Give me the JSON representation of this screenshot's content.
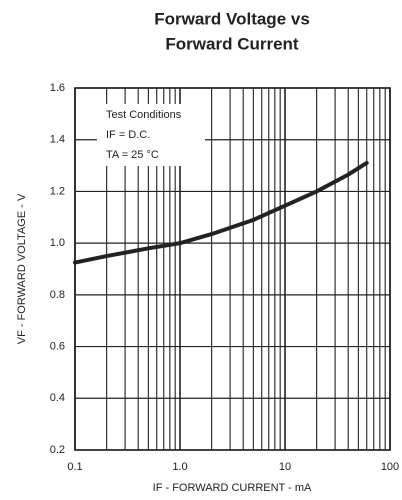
{
  "chart_data": {
    "type": "line",
    "title": [
      "Forward Voltage vs",
      "Forward Current"
    ],
    "x_label": "IF - FORWARD CURRENT - mA",
    "y_label": "VF - FORWARD VOLTAGE - V",
    "annotations": [
      "Test Conditions",
      "IF = D.C.",
      "TA = 25 °C"
    ],
    "x": [
      0.1,
      0.2,
      0.5,
      1,
      2,
      5,
      10,
      20,
      40,
      60
    ],
    "series": [
      {
        "name": "VF",
        "color": "#222222",
        "values": [
          0.925,
          0.95,
          0.98,
          1.0,
          1.035,
          1.09,
          1.145,
          1.2,
          1.265,
          1.31
        ]
      }
    ],
    "xlim": [
      0.1,
      100
    ],
    "xscale": "log",
    "xticks": [
      0.1,
      {
        "value": 1,
        "label": "1.0"
      },
      10,
      100
    ],
    "ylim": [
      0.2,
      1.6
    ],
    "yticks": [
      0.2,
      0.4,
      0.6,
      0.8,
      {
        "value": 1,
        "label": "1.0"
      },
      1.2,
      1.4,
      1.6
    ],
    "grid": true,
    "minor_grid": true
  }
}
